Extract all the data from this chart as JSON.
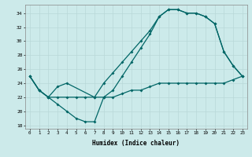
{
  "xlabel": "Humidex (Indice chaleur)",
  "bg_color": "#cceaea",
  "grid_color": "#b8d8d8",
  "line_color": "#006666",
  "xlim": [
    -0.5,
    23.5
  ],
  "ylim": [
    17.5,
    35.2
  ],
  "yticks": [
    18,
    20,
    22,
    24,
    26,
    28,
    30,
    32,
    34
  ],
  "xticks": [
    0,
    1,
    2,
    3,
    4,
    5,
    6,
    7,
    8,
    9,
    10,
    11,
    12,
    13,
    14,
    15,
    16,
    17,
    18,
    19,
    20,
    21,
    22,
    23
  ],
  "line1_x": [
    0,
    1,
    2,
    3,
    4,
    5,
    6,
    7,
    8,
    9,
    10,
    11,
    12,
    13,
    14,
    15,
    16,
    17,
    18,
    19,
    20,
    21,
    22,
    23
  ],
  "line1_y": [
    25,
    23,
    22,
    22,
    22,
    22,
    22,
    22,
    22,
    22,
    22.5,
    23,
    23,
    23.5,
    24,
    24,
    24,
    24,
    24,
    24,
    24,
    24,
    24.5,
    25
  ],
  "line2_x": [
    0,
    1,
    2,
    3,
    4,
    5,
    6,
    7,
    8,
    9,
    10,
    11,
    12,
    13,
    14,
    15,
    16,
    17,
    18,
    19,
    20,
    21,
    22,
    23
  ],
  "line2_y": [
    25,
    23,
    22,
    21,
    20,
    19,
    18.5,
    18.5,
    22,
    23,
    25,
    27,
    29,
    31,
    33.5,
    34.5,
    34.5,
    34,
    34,
    33.5,
    32.5,
    28.5,
    26.5,
    25
  ],
  "line3_x": [
    0,
    1,
    2,
    3,
    4,
    7,
    8,
    9,
    10,
    11,
    12,
    13,
    14,
    15,
    16,
    17,
    18,
    19,
    20,
    21,
    22,
    23
  ],
  "line3_y": [
    25,
    23,
    22,
    23.5,
    24,
    22,
    24,
    25.5,
    27,
    28.5,
    30,
    31.5,
    33.5,
    34.5,
    34.5,
    34,
    34,
    33.5,
    32.5,
    28.5,
    26.5,
    25
  ]
}
